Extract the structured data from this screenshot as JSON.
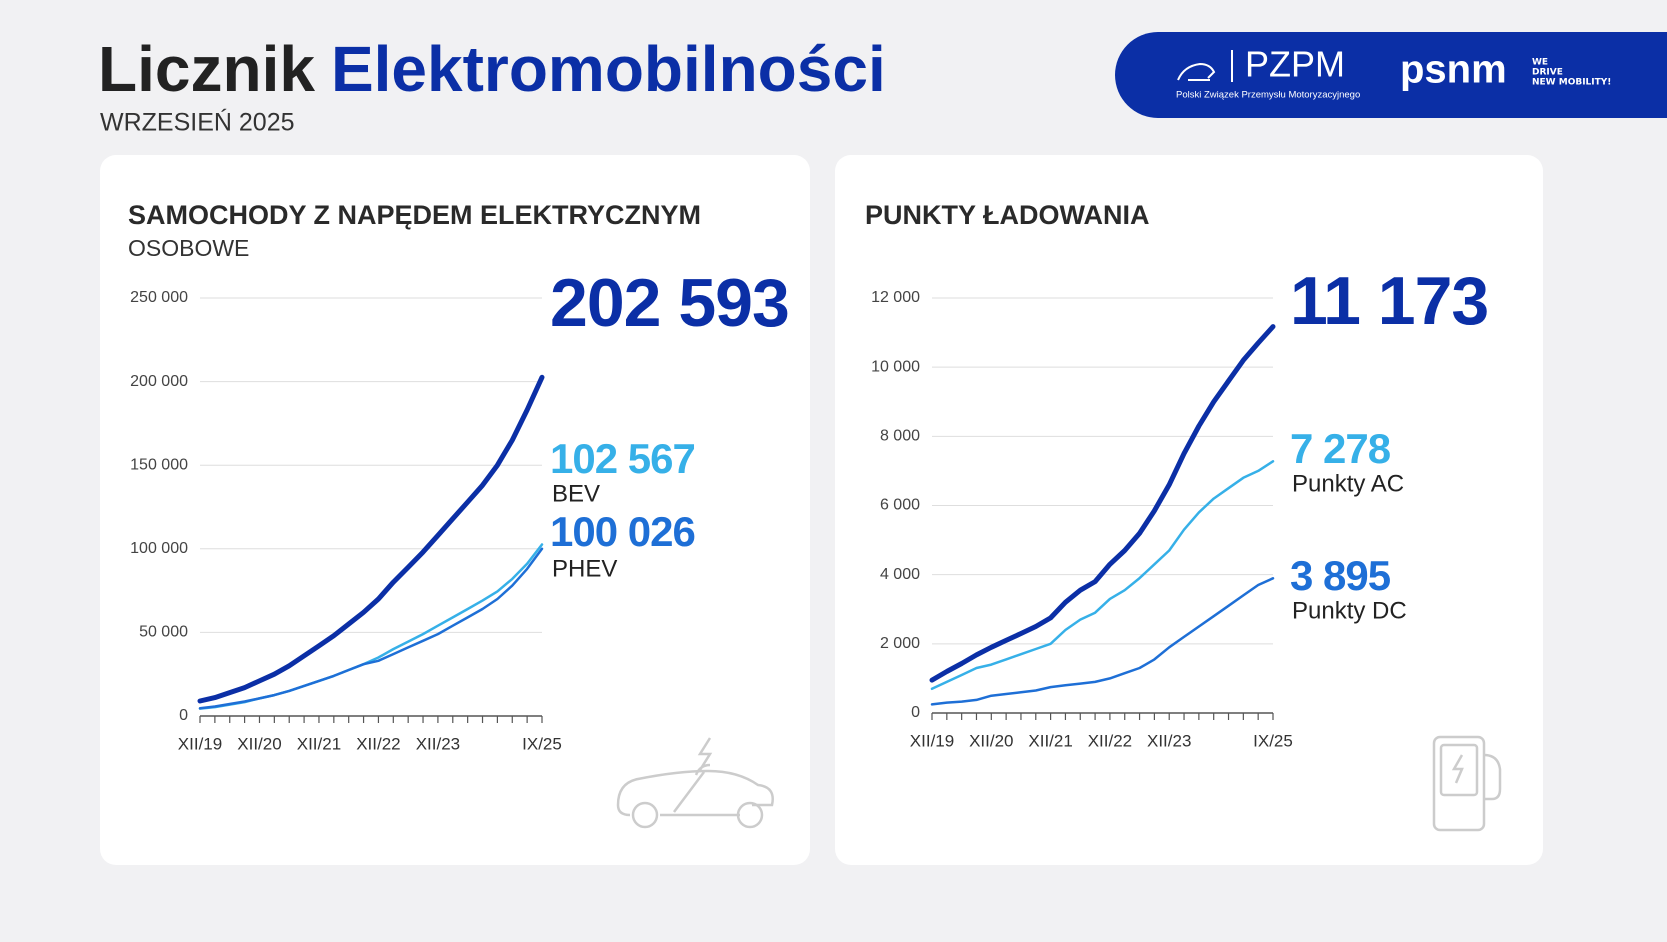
{
  "header": {
    "title_part1": "Licznik",
    "title_part2": "Elektromobilności",
    "subtitle": "WRZESIEŃ 2025",
    "logos": {
      "pzpm": "PZPM",
      "pzpm_full": "Polski Związek Przemysłu Motoryzacyjnego",
      "psnm": "psnm",
      "psnm_tagline_1": "WE",
      "psnm_tagline_2": "DRIVE",
      "psnm_tagline_3": "NEW MOBILITY!"
    }
  },
  "chart_data": [
    {
      "type": "line",
      "title": "SAMOCHODY Z NAPĘDEM ELEKTRYCZNYM",
      "subtitle": "OSOBOWE",
      "categories": [
        "XII/19",
        null,
        null,
        null,
        "XII/20",
        null,
        null,
        null,
        "XII/21",
        null,
        null,
        null,
        "XII/22",
        null,
        null,
        null,
        "XII/23",
        null,
        null,
        null,
        null,
        null,
        null,
        "IX/25"
      ],
      "ylim": [
        0,
        250000
      ],
      "yticks": [
        0,
        {
          "value": 50000,
          "label": "50 000"
        },
        {
          "value": 100000,
          "label": "100 000"
        },
        {
          "value": 150000,
          "label": "150 000"
        },
        {
          "value": 200000,
          "label": "200 000"
        },
        {
          "value": 250000,
          "label": "250 000"
        }
      ],
      "grid": true,
      "series": [
        {
          "color": "#0b2fa6",
          "values": [
            9000,
            11000,
            14000,
            17000,
            21000,
            25000,
            30000,
            36000,
            42000,
            48000,
            55000,
            62000,
            70000,
            80000,
            89000,
            98000,
            108000,
            118000,
            128000,
            138000,
            150000,
            165000,
            183000,
            202593
          ],
          "value_labels": [
            null,
            null,
            null,
            null,
            null,
            null,
            null,
            null,
            null,
            null,
            null,
            null,
            null,
            null,
            null,
            null,
            null,
            null,
            null,
            null,
            null,
            null,
            null,
            "202 593"
          ]
        },
        {
          "name": "BEV",
          "color": "#36b0e8",
          "values": [
            4400,
            5300,
            6800,
            8300,
            10500,
            12500,
            15000,
            18000,
            21000,
            24000,
            27500,
            31000,
            35000,
            40000,
            44500,
            49000,
            54000,
            59000,
            64000,
            69000,
            74500,
            82000,
            91000,
            102567
          ],
          "value_labels": [
            null,
            null,
            null,
            null,
            null,
            null,
            null,
            null,
            null,
            null,
            null,
            null,
            null,
            null,
            null,
            null,
            null,
            null,
            null,
            null,
            null,
            null,
            null,
            "102 567"
          ]
        },
        {
          "name": "PHEV",
          "color": "#1e6fd6",
          "values": [
            4600,
            5700,
            7200,
            8700,
            10500,
            12500,
            15000,
            18000,
            21000,
            24000,
            27500,
            31000,
            33000,
            37000,
            41000,
            45000,
            49000,
            54000,
            59000,
            64000,
            70000,
            78000,
            88000,
            100026
          ],
          "value_labels": [
            null,
            null,
            null,
            null,
            null,
            null,
            null,
            null,
            null,
            null,
            null,
            null,
            null,
            null,
            null,
            null,
            null,
            null,
            null,
            null,
            null,
            null,
            null,
            "100 026"
          ]
        }
      ]
    },
    {
      "type": "line",
      "title": "PUNKTY ŁADOWANIA",
      "categories": [
        "XII/19",
        null,
        null,
        null,
        "XII/20",
        null,
        null,
        null,
        "XII/21",
        null,
        null,
        null,
        "XII/22",
        null,
        null,
        null,
        "XII/23",
        null,
        null,
        null,
        null,
        null,
        null,
        "IX/25"
      ],
      "ylim": [
        0,
        12000
      ],
      "yticks": [
        0,
        {
          "value": 2000,
          "label": "2 000"
        },
        {
          "value": 4000,
          "label": "4 000"
        },
        {
          "value": 6000,
          "label": "6 000"
        },
        {
          "value": 8000,
          "label": "8 000"
        },
        {
          "value": 10000,
          "label": "10 000"
        },
        {
          "value": 12000,
          "label": "12 000"
        }
      ],
      "grid": true,
      "series": [
        {
          "color": "#0b2fa6",
          "values": [
            950,
            1200,
            1430,
            1680,
            1900,
            2100,
            2300,
            2500,
            2750,
            3200,
            3550,
            3800,
            4300,
            4700,
            5200,
            5850,
            6600,
            7500,
            8300,
            9000,
            9600,
            10200,
            10700,
            11173
          ],
          "value_labels": [
            null,
            null,
            null,
            null,
            null,
            null,
            null,
            null,
            null,
            null,
            null,
            null,
            null,
            null,
            null,
            null,
            null,
            null,
            null,
            null,
            null,
            null,
            null,
            "11 173"
          ]
        },
        {
          "name": "Punkty AC",
          "color": "#36b0e8",
          "values": [
            700,
            900,
            1100,
            1300,
            1400,
            1550,
            1700,
            1850,
            2000,
            2400,
            2700,
            2900,
            3300,
            3550,
            3900,
            4300,
            4700,
            5300,
            5800,
            6200,
            6500,
            6800,
            7000,
            7278
          ],
          "value_labels": [
            null,
            null,
            null,
            null,
            null,
            null,
            null,
            null,
            null,
            null,
            null,
            null,
            null,
            null,
            null,
            null,
            null,
            null,
            null,
            null,
            null,
            null,
            null,
            "7 278"
          ]
        },
        {
          "name": "Punkty DC",
          "color": "#1e6fd6",
          "values": [
            250,
            300,
            330,
            380,
            500,
            550,
            600,
            650,
            750,
            800,
            850,
            900,
            1000,
            1150,
            1300,
            1550,
            1900,
            2200,
            2500,
            2800,
            3100,
            3400,
            3700,
            3895
          ],
          "value_labels": [
            null,
            null,
            null,
            null,
            null,
            null,
            null,
            null,
            null,
            null,
            null,
            null,
            null,
            null,
            null,
            null,
            null,
            null,
            null,
            null,
            null,
            null,
            null,
            "3 895"
          ]
        }
      ]
    }
  ]
}
